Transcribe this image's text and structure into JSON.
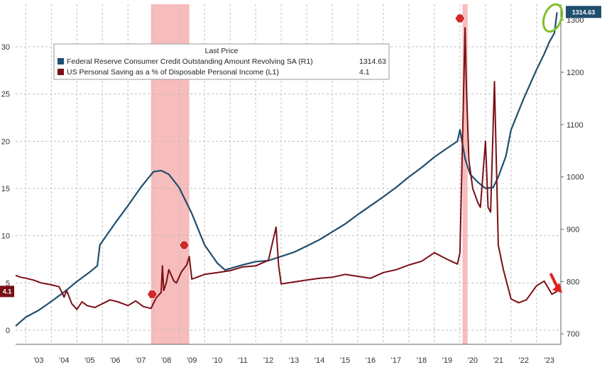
{
  "chart_data": {
    "type": "line",
    "legend": {
      "title": "Last Price",
      "placement": "top-left",
      "entries": [
        {
          "label": "Federal Reserve Consumer Credit Outstanding Amount Revolving SA  (R1)",
          "value": "1314.63",
          "color": "#1f4e6e"
        },
        {
          "label": "US Personal Saving as a % of Disposable Personal Income  (L1)",
          "value": "4.1",
          "color": "#7a0f16"
        }
      ]
    },
    "x_ticks": [
      "'03",
      "'04",
      "'05",
      "'06",
      "'07",
      "'08",
      "'09",
      "'10",
      "'11",
      "'12",
      "'13",
      "'14",
      "'15",
      "'16",
      "'17",
      "'18",
      "'19",
      "'20",
      "'21",
      "'22",
      "'23"
    ],
    "x_range": [
      2002.6,
      2023.95
    ],
    "y_left": {
      "ticks": [
        "0",
        "5",
        "10",
        "15",
        "20",
        "25",
        "30"
      ],
      "range": [
        -1.5,
        34.5
      ]
    },
    "y_right": {
      "ticks": [
        "700",
        "800",
        "900",
        "1000",
        "1100",
        "1200",
        "1300"
      ],
      "range": [
        680,
        1330
      ]
    },
    "grid": true,
    "last_values": {
      "left": "4.1",
      "right": "1314.63"
    },
    "recessions": [
      [
        2007.9,
        2009.4
      ],
      [
        2020.1,
        2020.3
      ]
    ],
    "series": [
      {
        "name": "Federal Reserve Consumer Credit Outstanding Amount Revolving SA",
        "axis": "right",
        "color": "#1f4e6e",
        "x": [
          2002.6,
          2003.0,
          2003.5,
          2004.0,
          2004.5,
          2005.0,
          2005.5,
          2005.8,
          2005.9,
          2006.5,
          2007.0,
          2007.5,
          2008.0,
          2008.3,
          2008.6,
          2009.0,
          2009.5,
          2010.0,
          2010.5,
          2010.8,
          2011.0,
          2011.5,
          2012.0,
          2012.5,
          2013.0,
          2013.5,
          2014.0,
          2014.5,
          2015.0,
          2015.5,
          2016.0,
          2016.5,
          2017.0,
          2017.5,
          2018.0,
          2018.5,
          2019.0,
          2019.5,
          2019.9,
          2020.0,
          2020.2,
          2020.4,
          2020.7,
          2021.0,
          2021.3,
          2021.5,
          2021.8,
          2022.0,
          2022.5,
          2023.0,
          2023.3,
          2023.5,
          2023.7,
          2023.8
        ],
        "values": [
          715,
          732,
          745,
          762,
          780,
          800,
          818,
          830,
          870,
          912,
          945,
          980,
          1010,
          1012,
          1005,
          980,
          930,
          870,
          835,
          822,
          825,
          832,
          838,
          840,
          848,
          856,
          868,
          880,
          895,
          910,
          928,
          945,
          962,
          980,
          1000,
          1018,
          1038,
          1055,
          1068,
          1090,
          1035,
          1005,
          990,
          978,
          980,
          1000,
          1040,
          1090,
          1150,
          1205,
          1235,
          1258,
          1275,
          1314.63
        ]
      },
      {
        "name": "US Personal Saving as a % of Disposable Personal Income",
        "axis": "left",
        "color": "#7a0f16",
        "x": [
          2002.6,
          2002.8,
          2003.0,
          2003.3,
          2003.6,
          2004.0,
          2004.3,
          2004.5,
          2004.6,
          2004.8,
          2005.0,
          2005.2,
          2005.4,
          2005.7,
          2006.0,
          2006.3,
          2006.6,
          2007.0,
          2007.3,
          2007.6,
          2007.9,
          2008.1,
          2008.3,
          2008.35,
          2008.4,
          2008.5,
          2008.6,
          2008.8,
          2008.9,
          2009.1,
          2009.3,
          2009.4,
          2009.5,
          2009.7,
          2010.0,
          2010.5,
          2011.0,
          2011.5,
          2012.0,
          2012.5,
          2012.8,
          2012.9,
          2013.0,
          2013.5,
          2014.0,
          2014.5,
          2015.0,
          2015.5,
          2016.0,
          2016.5,
          2017.0,
          2017.5,
          2018.0,
          2018.5,
          2019.0,
          2019.5,
          2019.9,
          2020.0,
          2020.2,
          2020.25,
          2020.35,
          2020.5,
          2020.7,
          2020.8,
          2021.0,
          2021.1,
          2021.2,
          2021.35,
          2021.5,
          2021.7,
          2022.0,
          2022.3,
          2022.6,
          2023.0,
          2023.3,
          2023.6,
          2023.8
        ],
        "values": [
          5.8,
          5.6,
          5.5,
          5.3,
          5.0,
          4.8,
          4.6,
          3.5,
          4.2,
          2.8,
          2.2,
          3.0,
          2.6,
          2.4,
          2.8,
          3.2,
          3.0,
          2.6,
          3.1,
          2.5,
          2.3,
          3.4,
          4.0,
          6.8,
          4.2,
          5.0,
          6.4,
          5.2,
          5.0,
          6.2,
          6.9,
          7.8,
          5.4,
          5.6,
          5.9,
          6.1,
          6.3,
          6.7,
          6.8,
          7.4,
          10.9,
          6.8,
          4.9,
          5.1,
          5.3,
          5.5,
          5.6,
          5.9,
          5.7,
          5.5,
          6.1,
          6.4,
          6.9,
          7.3,
          8.2,
          7.5,
          7.0,
          8.2,
          32.0,
          26.0,
          18.0,
          15.0,
          13.5,
          13.0,
          20.0,
          13.0,
          12.5,
          26.3,
          9.0,
          6.4,
          3.3,
          2.9,
          3.2,
          4.7,
          5.2,
          3.8,
          4.1
        ]
      }
    ]
  }
}
